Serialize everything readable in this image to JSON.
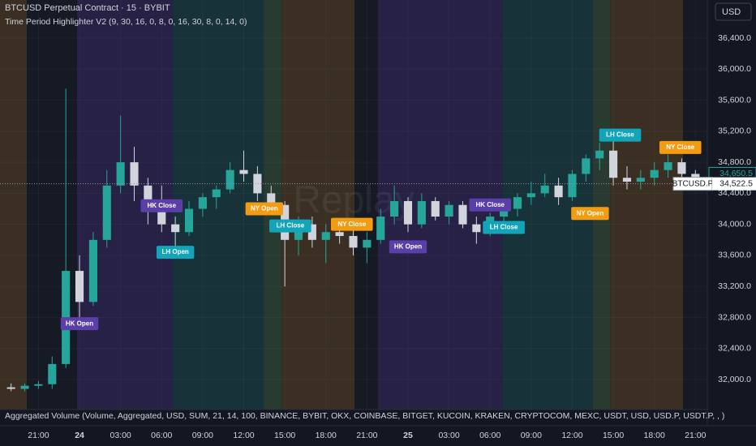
{
  "chart_data": {
    "type": "candlestick",
    "title": "BTCUSD Perpetual Contract · 15 · BYBIT",
    "subtitle": "Time Period Highlighter V2 (9, 30, 16, 0, 8, 0, 16, 30, 8, 0, 14, 0)",
    "footer": "Aggregated Volume (Volume, Aggregated, USD, SUM, 21, 14, 100, BINANCE, BYBIT, OKX, COINBASE, BITGET, KUCOIN, KRAKEN, CRYPTOCOM, MEXC, USDT, USD, USD.P, USDT.P, , )",
    "currency": "USD",
    "watermark": "Replay",
    "x": [
      -5,
      -4,
      -3,
      -2,
      -1,
      0,
      1,
      2,
      3,
      4,
      5,
      6,
      7,
      8,
      9,
      10,
      11,
      12,
      13,
      14,
      15,
      16,
      17,
      18,
      19,
      20,
      21,
      22,
      23,
      24,
      25,
      26,
      27,
      28,
      29,
      30,
      31,
      32,
      33,
      34,
      35,
      36,
      37,
      38,
      39,
      40,
      41,
      42,
      43,
      44,
      45
    ],
    "open": [
      31900,
      31880,
      31920,
      31940,
      32200,
      33400,
      33000,
      33800,
      34500,
      34800,
      34500,
      34200,
      34000,
      33900,
      34200,
      34350,
      34450,
      34700,
      34650,
      34400,
      34250,
      33800,
      34000,
      33800,
      33900,
      33850,
      33700,
      33800,
      34100,
      34300,
      34000,
      34300,
      34100,
      34250,
      34000,
      33900,
      34100,
      34200,
      34350,
      34400,
      34500,
      34350,
      34650,
      34850,
      34950,
      34600,
      34550,
      34600,
      34700,
      34800,
      34650
    ],
    "high": [
      31950,
      31950,
      31980,
      32300,
      35750,
      33600,
      33900,
      34700,
      35400,
      35000,
      34600,
      34500,
      34100,
      34300,
      34400,
      34500,
      34800,
      34950,
      34750,
      34500,
      34300,
      34100,
      34100,
      34000,
      34000,
      33950,
      33900,
      34200,
      34500,
      34350,
      34400,
      34350,
      34300,
      34300,
      34100,
      34150,
      34300,
      34400,
      34550,
      34650,
      34600,
      34700,
      34900,
      35050,
      35200,
      34750,
      34700,
      34800,
      34900,
      34850,
      34700
    ],
    "low": [
      31850,
      31850,
      31880,
      31880,
      32150,
      32700,
      32950,
      33700,
      34400,
      34300,
      34000,
      33900,
      33700,
      33850,
      34100,
      34200,
      34400,
      34550,
      34300,
      34150,
      33200,
      33600,
      33700,
      33500,
      33750,
      33600,
      33500,
      33750,
      34000,
      33900,
      33950,
      34050,
      34000,
      33950,
      33750,
      33850,
      34000,
      34100,
      34250,
      34350,
      34250,
      34300,
      34550,
      34700,
      34500,
      34450,
      34450,
      34500,
      34600,
      34550,
      34500
    ],
    "close": [
      31880,
      31920,
      31940,
      32200,
      33400,
      33000,
      33800,
      34500,
      34800,
      34500,
      34200,
      34000,
      33900,
      34200,
      34350,
      34450,
      34700,
      34650,
      34400,
      34250,
      33800,
      34000,
      33800,
      33900,
      33850,
      33700,
      33800,
      34100,
      34300,
      34000,
      34300,
      34100,
      34250,
      34000,
      33900,
      34100,
      34200,
      34350,
      34400,
      34500,
      34350,
      34650,
      34850,
      34950,
      34600,
      34550,
      34600,
      34700,
      34800,
      34650,
      34522.5
    ],
    "up_color": "#26a69a",
    "down_color": "#d1d4dc",
    "xlim": [
      -5.81,
      45.87
    ],
    "xticks": [
      {
        "value": -3,
        "label": "21:00"
      },
      {
        "value": 0,
        "label": "24"
      },
      {
        "value": 3,
        "label": "03:00"
      },
      {
        "value": 6,
        "label": "06:00"
      },
      {
        "value": 9,
        "label": "09:00"
      },
      {
        "value": 12,
        "label": "12:00"
      },
      {
        "value": 15,
        "label": "15:00"
      },
      {
        "value": 18,
        "label": "18:00"
      },
      {
        "value": 21,
        "label": "21:00"
      },
      {
        "value": 24,
        "label": "25"
      },
      {
        "value": 27,
        "label": "03:00"
      },
      {
        "value": 30,
        "label": "06:00"
      },
      {
        "value": 33,
        "label": "09:00"
      },
      {
        "value": 36,
        "label": "12:00"
      },
      {
        "value": 39,
        "label": "15:00"
      },
      {
        "value": 42,
        "label": "18:00"
      },
      {
        "value": 45,
        "label": "21:00"
      }
    ],
    "ylim": [
      31614,
      36891
    ],
    "yticks": [
      {
        "value": 32000,
        "label": "32,000.0"
      },
      {
        "value": 32400,
        "label": "32,400.0"
      },
      {
        "value": 32800,
        "label": "32,800.0"
      },
      {
        "value": 33200,
        "label": "33,200.0"
      },
      {
        "value": 33600,
        "label": "33,600.0"
      },
      {
        "value": 34000,
        "label": "34,000.0"
      },
      {
        "value": 34400,
        "label": "34,400.0"
      },
      {
        "value": 34800,
        "label": "34,800.0"
      },
      {
        "value": 35200,
        "label": "35,200.0"
      },
      {
        "value": 35600,
        "label": "35,600.0"
      },
      {
        "value": 36000,
        "label": "36,000.0"
      },
      {
        "value": 36400,
        "label": "36,400.0"
      }
    ],
    "grid": true,
    "sessions": [
      {
        "start": -5.81,
        "end": -3.85,
        "color": "#3a2f22"
      },
      {
        "start": -3.85,
        "end": -0.18,
        "color": "#161a25"
      },
      {
        "start": -0.18,
        "end": 6.82,
        "color": "#262145"
      },
      {
        "start": 6.82,
        "end": 13.46,
        "color": "#173238"
      },
      {
        "start": 13.46,
        "end": 14.76,
        "color": "#293a30"
      },
      {
        "start": 14.76,
        "end": 20.1,
        "color": "#3a2f22"
      },
      {
        "start": 20.1,
        "end": 21.8,
        "color": "#161a25"
      },
      {
        "start": 21.8,
        "end": 30.9,
        "color": "#262145"
      },
      {
        "start": 30.9,
        "end": 37.5,
        "color": "#173238"
      },
      {
        "start": 37.5,
        "end": 38.8,
        "color": "#293a30"
      },
      {
        "start": 38.8,
        "end": 44.1,
        "color": "#3a2f22"
      },
      {
        "start": 44.1,
        "end": 45.87,
        "color": "#161a25"
      }
    ],
    "annotations": [
      {
        "text": "HK Open",
        "x": 0,
        "y": 32720,
        "color": "#5b3fa8"
      },
      {
        "text": "HK Close",
        "x": 6,
        "y": 34240,
        "color": "#5b3fa8"
      },
      {
        "text": "LH Open",
        "x": 7,
        "y": 33640,
        "color": "#12a4b8"
      },
      {
        "text": "NY Open",
        "x": 13.5,
        "y": 34200,
        "color": "#f39c12"
      },
      {
        "text": "LH Close",
        "x": 15.4,
        "y": 33980,
        "color": "#12a4b8"
      },
      {
        "text": "NY Close",
        "x": 19.9,
        "y": 34000,
        "color": "#f39c12"
      },
      {
        "text": "HK Open",
        "x": 24,
        "y": 33710,
        "color": "#5b3fa8"
      },
      {
        "text": "HK Close",
        "x": 30,
        "y": 34250,
        "color": "#5b3fa8"
      },
      {
        "text": "LH Close",
        "x": 31,
        "y": 33960,
        "color": "#12a4b8"
      },
      {
        "text": "NY Open",
        "x": 37.3,
        "y": 34140,
        "color": "#f39c12"
      },
      {
        "text": "LH Close",
        "x": 39.5,
        "y": 35150,
        "color": "#12a4b8"
      },
      {
        "text": "NY Close",
        "x": 43.9,
        "y": 34990,
        "color": "#f39c12"
      }
    ],
    "price_lines": [
      {
        "value": 34650.5,
        "label": "34,650.5",
        "color": "#26a69a"
      },
      {
        "value": 34522.5,
        "label": "34,522.5",
        "name": "BTCUSD.P",
        "color": "#ffffff"
      }
    ]
  }
}
